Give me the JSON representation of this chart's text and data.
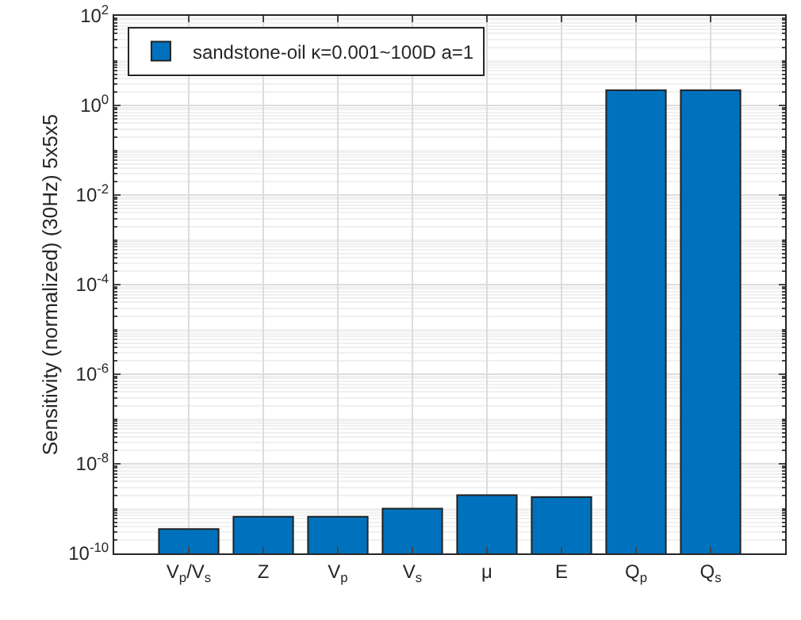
{
  "chart_data": {
    "type": "bar",
    "ylabel": "Sensitivity (normalized) (30Hz) 5x5x5",
    "categories": [
      "V$_{p}$/V$_{s}$",
      "Z",
      "V$_{p}$",
      "V$_{s}$",
      "μ",
      "E",
      "Q$_{p}$",
      "Q$_{s}$"
    ],
    "series": [
      {
        "name": "sandstone-oil κ=0.001~100D a=1",
        "color": "#0072bd",
        "values": [
          3.5e-10,
          6.6e-10,
          6.6e-10,
          1e-09,
          2e-09,
          1.8e-09,
          2.2,
          2.2
        ]
      }
    ],
    "log": "y",
    "ylim": [
      1e-10,
      100
    ],
    "yticks": [
      {
        "value": 1e-10,
        "label": "10$^{-10}$"
      },
      {
        "value": 1e-08,
        "label": "10$^{-8}$"
      },
      {
        "value": 1e-06,
        "label": "10$^{-6}$"
      },
      {
        "value": 0.0001,
        "label": "10$^{-4}$"
      },
      {
        "value": 0.01,
        "label": "10$^{-2}$"
      },
      {
        "value": 1,
        "label": "10$^{0}$"
      },
      {
        "value": 100,
        "label": "10$^{2}$"
      }
    ],
    "grid": true,
    "legend": "top left"
  }
}
